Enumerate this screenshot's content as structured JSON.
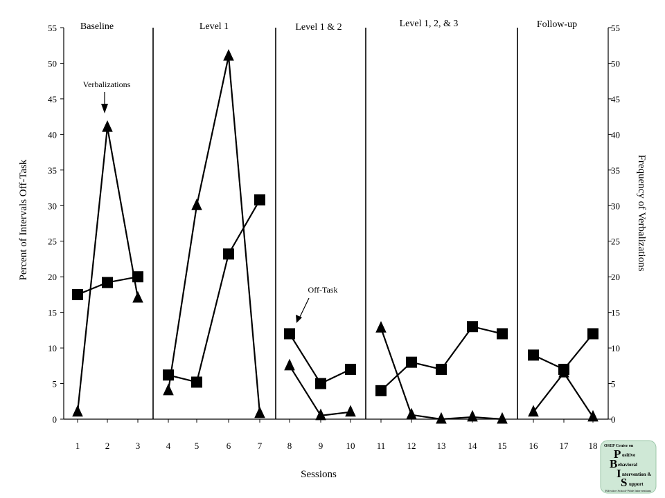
{
  "chart_data": {
    "type": "line",
    "xlabel": "Sessions",
    "ylabel_left": "Percent of Intervals Off-Task",
    "ylabel_right": "Frequency of Verbalizations",
    "ylim": [
      0,
      55
    ],
    "yticks": [
      0,
      5,
      10,
      15,
      20,
      25,
      30,
      35,
      40,
      45,
      50,
      55
    ],
    "xticks": [
      1,
      2,
      3,
      4,
      5,
      6,
      7,
      8,
      9,
      10,
      11,
      12,
      13,
      14,
      15,
      16,
      17,
      18
    ],
    "phases": [
      {
        "label": "Baseline",
        "sessions": [
          1,
          3
        ]
      },
      {
        "label": "Level 1",
        "sessions": [
          4,
          7
        ]
      },
      {
        "label": "Level 1 & 2",
        "sessions": [
          8,
          10
        ]
      },
      {
        "label": "Level 1, 2, & 3",
        "sessions": [
          11,
          15
        ]
      },
      {
        "label": "Follow-up",
        "sessions": [
          16,
          18
        ]
      }
    ],
    "series": [
      {
        "name": "Off-Task",
        "marker": "square",
        "points": [
          {
            "x": 1,
            "y": 17.5
          },
          {
            "x": 2,
            "y": 19.2
          },
          {
            "x": 3,
            "y": 20.0
          },
          {
            "x": 4,
            "y": 6.2
          },
          {
            "x": 5,
            "y": 5.2
          },
          {
            "x": 6,
            "y": 23.2
          },
          {
            "x": 7,
            "y": 30.8
          },
          {
            "x": 8,
            "y": 12.0
          },
          {
            "x": 9,
            "y": 5.0
          },
          {
            "x": 10,
            "y": 7.0
          },
          {
            "x": 11,
            "y": 4.0
          },
          {
            "x": 12,
            "y": 8.0
          },
          {
            "x": 13,
            "y": 7.0
          },
          {
            "x": 14,
            "y": 13.0
          },
          {
            "x": 15,
            "y": 12.0
          },
          {
            "x": 16,
            "y": 9.0
          },
          {
            "x": 17,
            "y": 7.0
          },
          {
            "x": 18,
            "y": 12.0
          }
        ]
      },
      {
        "name": "Verbalizations",
        "marker": "triangle",
        "points": [
          {
            "x": 1,
            "y": 1.0
          },
          {
            "x": 2,
            "y": 41.0
          },
          {
            "x": 3,
            "y": 17.0
          },
          {
            "x": 4,
            "y": 4.0
          },
          {
            "x": 5,
            "y": 30.0
          },
          {
            "x": 6,
            "y": 51.0
          },
          {
            "x": 7,
            "y": 0.8
          },
          {
            "x": 8,
            "y": 7.5
          },
          {
            "x": 9,
            "y": 0.5
          },
          {
            "x": 10,
            "y": 1.0
          },
          {
            "x": 11,
            "y": 12.8
          },
          {
            "x": 12,
            "y": 0.6
          },
          {
            "x": 13,
            "y": 0.0
          },
          {
            "x": 14,
            "y": 0.3
          },
          {
            "x": 15,
            "y": 0.0
          },
          {
            "x": 16,
            "y": 1.0
          },
          {
            "x": 17,
            "y": 6.5
          },
          {
            "x": 18,
            "y": 0.3
          }
        ]
      }
    ],
    "annotations": [
      {
        "text": "Verbalizations",
        "points_to": {
          "x": 2,
          "y": 41.0
        }
      },
      {
        "text": "Off-Task",
        "points_to": {
          "x": 8,
          "y": 12.0
        }
      }
    ],
    "grid": false,
    "legend": "none"
  },
  "logo": {
    "line1": "OSEP Center on",
    "letters": [
      "P",
      "B",
      "I",
      "S"
    ],
    "words": [
      "ositive",
      "ehavioral",
      "ntervention &",
      "upport"
    ],
    "tagline": "Effective School-Wide Interventions",
    "color": "#2e7d4f",
    "bg": "#cfe8d6"
  }
}
